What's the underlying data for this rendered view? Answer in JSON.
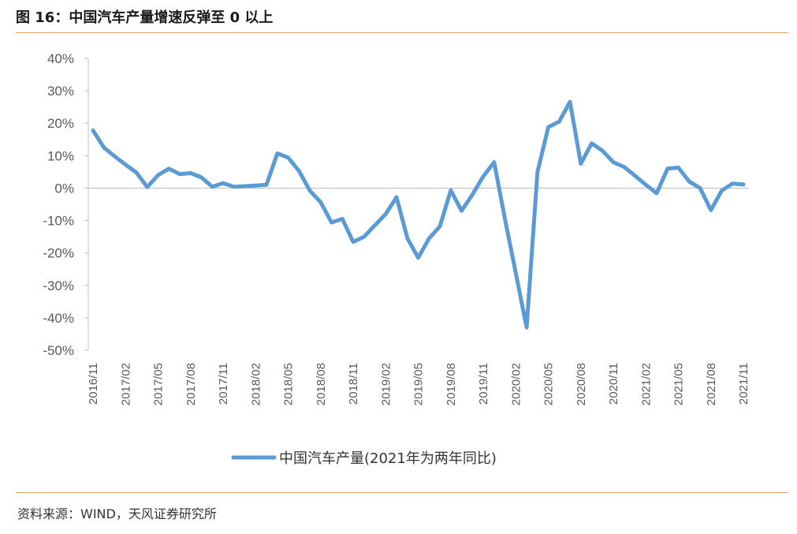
{
  "header": {
    "title": "图 16：中国汽车产量增速反弹至 0 以上"
  },
  "footer": {
    "source": "资料来源：WIND，天风证券研究所"
  },
  "colors": {
    "line": "#5b9bd5",
    "axis": "#bfbfbf",
    "rule": "#e0a060"
  },
  "chart_data": {
    "type": "line",
    "title": "",
    "xlabel": "",
    "ylabel": "",
    "ylim": [
      -0.5,
      0.4
    ],
    "y_ticks": [
      0.4,
      0.3,
      0.2,
      0.1,
      0,
      -0.1,
      -0.2,
      -0.3,
      -0.4,
      -0.5
    ],
    "y_tick_labels": [
      "40%",
      "30%",
      "20%",
      "10%",
      "0%",
      "-10%",
      "-20%",
      "-30%",
      "-40%",
      "-50%"
    ],
    "x_tick_labels": [
      "2016/11",
      "2017/02",
      "2017/05",
      "2017/08",
      "2017/11",
      "2018/02",
      "2018/05",
      "2018/08",
      "2018/11",
      "2019/02",
      "2019/05",
      "2019/08",
      "2019/11",
      "2020/02",
      "2020/05",
      "2020/08",
      "2020/11",
      "2021/02",
      "2021/05",
      "2021/08",
      "2021/11"
    ],
    "legend": "bottom",
    "grid": false,
    "series": [
      {
        "name": "中国汽车产量(2021年为两年同比)",
        "x": [
          "2016/11",
          "2016/12",
          "2017/01",
          "2017/02",
          "2017/03",
          "2017/04",
          "2017/05",
          "2017/06",
          "2017/07",
          "2017/08",
          "2017/09",
          "2017/10",
          "2017/11",
          "2017/12",
          "2018/01",
          "2018/02",
          "2018/03",
          "2018/04",
          "2018/05",
          "2018/06",
          "2018/07",
          "2018/08",
          "2018/09",
          "2018/10",
          "2018/11",
          "2018/12",
          "2019/01",
          "2019/02",
          "2019/03",
          "2019/04",
          "2019/05",
          "2019/06",
          "2019/07",
          "2019/08",
          "2019/09",
          "2019/10",
          "2019/11",
          "2019/12",
          "2020/01",
          "2020/02",
          "2020/03",
          "2020/04",
          "2020/05",
          "2020/06",
          "2020/07",
          "2020/08",
          "2020/09",
          "2020/10",
          "2020/11",
          "2020/12",
          "2021/01",
          "2021/02",
          "2021/03",
          "2021/04",
          "2021/05",
          "2021/06",
          "2021/07",
          "2021/08",
          "2021/09",
          "2021/10",
          "2021/11"
        ],
        "values": [
          0.178,
          0.125,
          0.098,
          0.072,
          0.048,
          0.003,
          0.04,
          0.06,
          0.043,
          0.046,
          0.033,
          0.004,
          0.015,
          0.004,
          0.006,
          0.008,
          0.01,
          0.107,
          0.094,
          0.053,
          -0.008,
          -0.044,
          -0.106,
          -0.095,
          -0.166,
          -0.15,
          -0.115,
          -0.08,
          -0.028,
          -0.155,
          -0.215,
          -0.155,
          -0.118,
          -0.007,
          -0.07,
          -0.02,
          0.036,
          0.08,
          -0.095,
          -0.262,
          -0.43,
          0.05,
          0.188,
          0.205,
          0.266,
          0.075,
          0.138,
          0.115,
          0.08,
          0.065,
          0.038,
          0.01,
          -0.016,
          0.06,
          0.063,
          0.02,
          0.0,
          -0.068,
          -0.008,
          0.014,
          0.011
        ]
      }
    ]
  }
}
